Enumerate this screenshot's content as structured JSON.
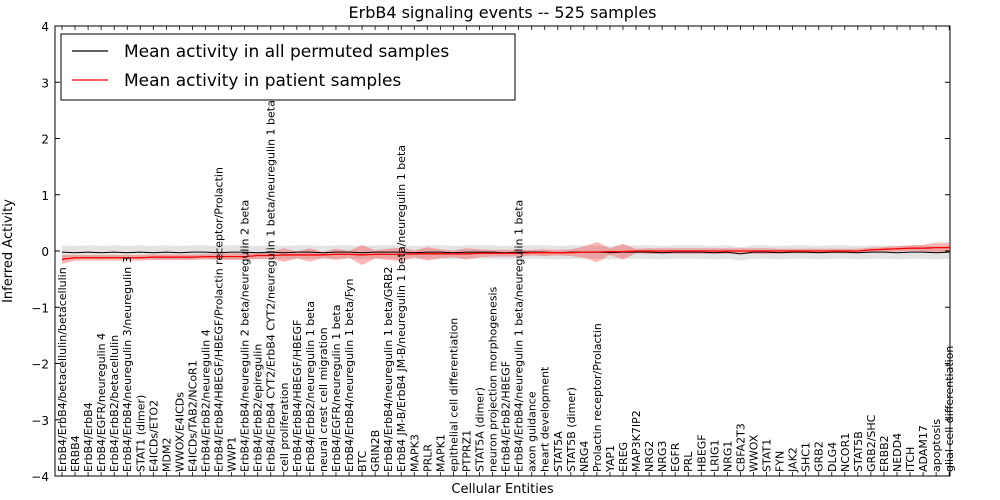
{
  "chart_data": {
    "type": "line",
    "title": "ErbB4 signaling events -- 525 samples",
    "xlabel": "Cellular Entities",
    "ylabel": "Inferred Activity",
    "ylim": [
      -4,
      4
    ],
    "yticks": [
      -4,
      -3,
      -2,
      -1,
      0,
      1,
      2,
      3,
      4
    ],
    "legend": {
      "position": "top-left",
      "entries": [
        {
          "name": "Mean activity in all permuted samples",
          "color": "#000000"
        },
        {
          "name": "Mean activity in patient samples",
          "color": "#ff0000"
        }
      ]
    },
    "categories": [
      "ErbB4/ErbB4/betacellulin/betacellulin",
      "ERBB4",
      "ErbB4/ErbB4",
      "ErbB4/EGFR/neuregulin 4",
      "ErbB4/ErbB2/betacellulin",
      "ErbB4/ErbB4/neuregulin 3/neuregulin 3",
      "STAT1 (dimer)",
      "E4ICDs/ETO2",
      "MDM2",
      "WWOX/E4ICDs",
      "E4ICDs/TAB2/NCoR1",
      "ErbB4/ErbB2/neuregulin 4",
      "ErbB4/ErbB4/HBEGF/HBEGF/Prolactin receptor/Prolactin",
      "WWP1",
      "ErbB4/ErbB4/neuregulin 2 beta/neuregulin 2 beta",
      "ErbB4/ErbB2/epiregulin",
      "ErbB4/ErbB4 CYT2/ErbB4 CYT2/neuregulin 1 beta/neuregulin 1 beta",
      "cell proliferation",
      "ErbB4/ErbB4/HBEGF/HBEGF",
      "ErbB4/ErbB2/neuregulin 1 beta",
      "neural crest cell migration",
      "ErbB4/EGFR/neuregulin 1 beta",
      "ErbB4/ErbB4/neuregulin 1 beta/Fyn",
      "BTC",
      "GRIN2B",
      "ErbB4/ErbB4/neuregulin 1 beta/GRB2",
      "ErbB4 JM-B/ErbB4 JM-B/neuregulin 1 beta/neuregulin 1 beta",
      "MAPK3",
      "PRLR",
      "MAPK1",
      "epithelial cell differentiation",
      "PTPRZ1",
      "STAT5A (dimer)",
      "neuron projection morphogenesis",
      "ErbB4/ErbB2/HBEGF",
      "ErbB4/ErbB4/neuregulin 1 beta/neuregulin 1 beta",
      "axon guidance",
      "heart development",
      "STAT5A",
      "STAT5B (dimer)",
      "NRG4",
      "Prolactin receptor/Prolactin",
      "YAP1",
      "EREG",
      "MAP3K7IP2",
      "NRG2",
      "NRG3",
      "EGFR",
      "PRL",
      "HBEGF",
      "LRIG1",
      "NRG1",
      "CBFA2T3",
      "WWOX",
      "STAT1",
      "FYN",
      "JAK2",
      "SHC1",
      "GRB2",
      "DLG4",
      "NCOR1",
      "STAT5B",
      "GRB2/SHC",
      "ERBB2",
      "NEDD4",
      "ITCH",
      "ADAM17",
      "apoptosis",
      "glial cell differentiation"
    ],
    "series": [
      {
        "name": "Mean activity in all permuted samples",
        "color": "#000000",
        "values": [
          -0.02,
          -0.03,
          -0.02,
          -0.03,
          -0.02,
          -0.03,
          -0.02,
          -0.03,
          -0.02,
          -0.03,
          -0.02,
          -0.02,
          -0.03,
          -0.02,
          -0.02,
          -0.03,
          -0.02,
          -0.03,
          -0.02,
          -0.02,
          -0.03,
          -0.02,
          -0.02,
          -0.03,
          -0.02,
          -0.02,
          -0.02,
          -0.03,
          -0.02,
          -0.02,
          -0.03,
          -0.02,
          -0.02,
          -0.02,
          -0.03,
          -0.02,
          -0.02,
          -0.02,
          -0.03,
          -0.02,
          -0.02,
          -0.02,
          -0.03,
          -0.02,
          -0.02,
          -0.02,
          -0.03,
          -0.02,
          -0.02,
          -0.02,
          -0.03,
          -0.02,
          -0.05,
          -0.02,
          -0.02,
          -0.03,
          -0.02,
          -0.02,
          -0.03,
          -0.02,
          -0.02,
          -0.03,
          -0.02,
          -0.02,
          -0.03,
          -0.02,
          -0.02,
          -0.03,
          -0.02
        ],
        "band": [
          0.12,
          0.12,
          0.12,
          0.12,
          0.12,
          0.12,
          0.12,
          0.12,
          0.12,
          0.12,
          0.12,
          0.12,
          0.12,
          0.12,
          0.12,
          0.12,
          0.12,
          0.12,
          0.12,
          0.12,
          0.12,
          0.12,
          0.12,
          0.12,
          0.12,
          0.12,
          0.12,
          0.12,
          0.12,
          0.12,
          0.12,
          0.12,
          0.12,
          0.12,
          0.12,
          0.12,
          0.12,
          0.12,
          0.12,
          0.12,
          0.12,
          0.12,
          0.12,
          0.12,
          0.12,
          0.12,
          0.12,
          0.12,
          0.12,
          0.12,
          0.12,
          0.12,
          0.12,
          0.12,
          0.12,
          0.12,
          0.12,
          0.12,
          0.12,
          0.12,
          0.12,
          0.12,
          0.12,
          0.12,
          0.12,
          0.12,
          0.12,
          0.12,
          0.12
        ]
      },
      {
        "name": "Mean activity in patient samples",
        "color": "#ff0000",
        "values": [
          -0.15,
          -0.12,
          -0.12,
          -0.12,
          -0.12,
          -0.12,
          -0.12,
          -0.11,
          -0.11,
          -0.11,
          -0.11,
          -0.1,
          -0.1,
          -0.1,
          -0.1,
          -0.08,
          -0.08,
          -0.07,
          -0.07,
          -0.07,
          -0.07,
          -0.06,
          -0.06,
          -0.07,
          -0.06,
          -0.06,
          -0.06,
          -0.05,
          -0.05,
          -0.05,
          -0.05,
          -0.05,
          -0.04,
          -0.04,
          -0.04,
          -0.04,
          -0.03,
          -0.03,
          -0.03,
          -0.03,
          -0.02,
          -0.02,
          -0.01,
          -0.01,
          0.0,
          0.0,
          0.0,
          0.0,
          0.0,
          0.0,
          0.0,
          0.0,
          0.0,
          0.0,
          0.0,
          0.0,
          0.0,
          0.0,
          0.0,
          0.0,
          0.0,
          0.0,
          0.02,
          0.03,
          0.04,
          0.05,
          0.05,
          0.06,
          0.06
        ],
        "band": [
          0.08,
          0.05,
          0.05,
          0.05,
          0.05,
          0.05,
          0.05,
          0.05,
          0.05,
          0.05,
          0.05,
          0.05,
          0.06,
          0.06,
          0.06,
          0.06,
          0.06,
          0.12,
          0.06,
          0.12,
          0.05,
          0.1,
          0.06,
          0.18,
          0.07,
          0.1,
          0.12,
          0.06,
          0.12,
          0.08,
          0.06,
          0.1,
          0.07,
          0.06,
          0.06,
          0.06,
          0.05,
          0.06,
          0.05,
          0.06,
          0.1,
          0.18,
          0.06,
          0.14,
          0.04,
          0.05,
          0.05,
          0.05,
          0.05,
          0.05,
          0.05,
          0.05,
          0.05,
          0.05,
          0.05,
          0.04,
          0.04,
          0.04,
          0.04,
          0.04,
          0.04,
          0.04,
          0.04,
          0.04,
          0.05,
          0.05,
          0.06,
          0.09,
          0.09
        ]
      }
    ]
  }
}
